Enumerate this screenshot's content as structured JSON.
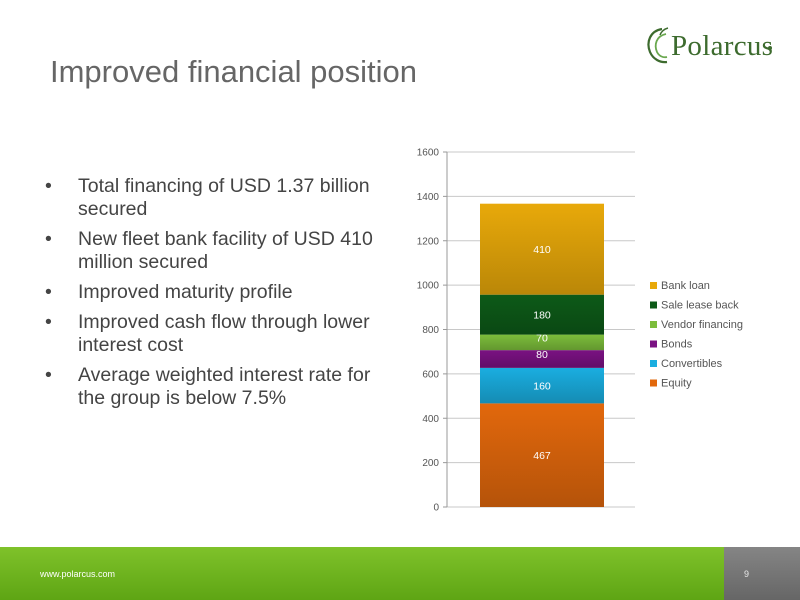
{
  "brand": {
    "name": "Polarcus"
  },
  "slide": {
    "title": "Improved financial position",
    "bullets": [
      "Total financing of USD 1.37 billion secured",
      "New fleet bank facility of USD 410 million secured",
      "Improved maturity profile",
      "Improved cash flow through lower interest cost",
      "Average weighted interest rate for the group is below 7.5%"
    ]
  },
  "footer": {
    "url": "www.polarcus.com",
    "page": "9"
  },
  "chart_data": {
    "type": "bar",
    "stacked": true,
    "categories": [
      ""
    ],
    "series": [
      {
        "name": "Equity",
        "values": [
          467
        ],
        "color": "#e2680c"
      },
      {
        "name": "Convertibles",
        "values": [
          160
        ],
        "color": "#1aaee0"
      },
      {
        "name": "Bonds",
        "values": [
          80
        ],
        "color": "#7a1282"
      },
      {
        "name": "Vendor financing",
        "values": [
          70
        ],
        "color": "#7cbd3b"
      },
      {
        "name": "Sale lease back",
        "values": [
          180
        ],
        "color": "#0d5a18"
      },
      {
        "name": "Bank loan",
        "values": [
          410
        ],
        "color": "#e8a90a"
      }
    ],
    "ylim": [
      0,
      1600
    ],
    "yticks": [
      0,
      200,
      400,
      600,
      800,
      1000,
      1200,
      1400,
      1600
    ],
    "grid": true,
    "legend": "right",
    "legend_order": [
      "Bank loan",
      "Sale lease back",
      "Vendor financing",
      "Bonds",
      "Convertibles",
      "Equity"
    ],
    "title": "",
    "xlabel": "",
    "ylabel": ""
  }
}
